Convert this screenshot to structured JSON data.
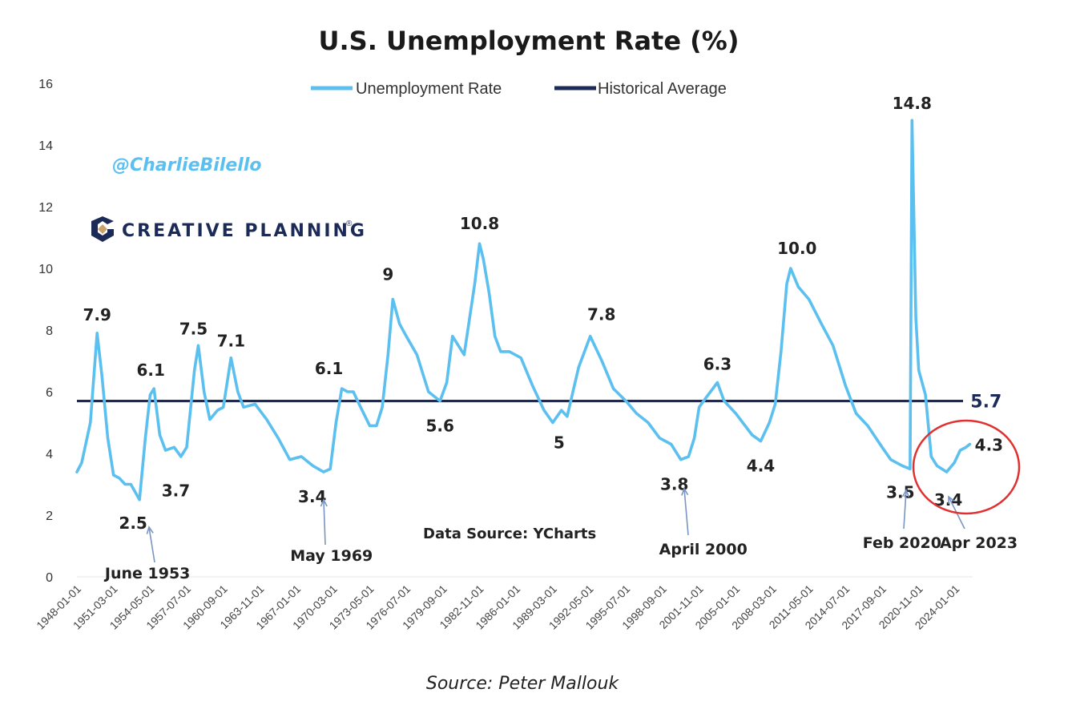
{
  "chart_data": {
    "type": "line",
    "title": "U.S. Unemployment Rate (%)",
    "xlabel": "",
    "ylabel": "",
    "ylim": [
      0,
      16
    ],
    "y_ticks": [
      "0",
      "2",
      "4",
      "6",
      "8",
      "10",
      "12",
      "14",
      "16"
    ],
    "x_tick_labels": [
      "1948-01-01",
      "1951-03-01",
      "1954-05-01",
      "1957-07-01",
      "1960-09-01",
      "1963-11-01",
      "1967-01-01",
      "1970-03-01",
      "1973-05-01",
      "1976-07-01",
      "1979-09-01",
      "1982-11-01",
      "1986-01-01",
      "1989-03-01",
      "1992-05-01",
      "1995-07-01",
      "1998-09-01",
      "2001-11-01",
      "2005-01-01",
      "2008-03-01",
      "2011-05-01",
      "2014-07-01",
      "2017-09-01",
      "2020-11-01",
      "2024-01-01"
    ],
    "legend": {
      "position": "top"
    },
    "series": [
      {
        "name": "Unemployment Rate",
        "color": "#5bc0ef",
        "points": [
          [
            "1948-01",
            3.4
          ],
          [
            "1948-06",
            3.7
          ],
          [
            "1949-03",
            5.0
          ],
          [
            "1949-10",
            7.9
          ],
          [
            "1950-03",
            6.5
          ],
          [
            "1950-09",
            4.5
          ],
          [
            "1951-03",
            3.3
          ],
          [
            "1951-09",
            3.2
          ],
          [
            "1952-03",
            3.0
          ],
          [
            "1952-09",
            3.0
          ],
          [
            "1953-06",
            2.5
          ],
          [
            "1953-12",
            4.5
          ],
          [
            "1954-05",
            5.9
          ],
          [
            "1954-09",
            6.1
          ],
          [
            "1955-03",
            4.6
          ],
          [
            "1955-09",
            4.1
          ],
          [
            "1956-06",
            4.2
          ],
          [
            "1957-01",
            3.9
          ],
          [
            "1957-07",
            4.2
          ],
          [
            "1958-03",
            6.7
          ],
          [
            "1958-07",
            7.5
          ],
          [
            "1959-01",
            6.0
          ],
          [
            "1959-07",
            5.1
          ],
          [
            "1960-03",
            5.4
          ],
          [
            "1960-09",
            5.5
          ],
          [
            "1961-05",
            7.1
          ],
          [
            "1961-12",
            6.0
          ],
          [
            "1962-06",
            5.5
          ],
          [
            "1963-06",
            5.6
          ],
          [
            "1964-06",
            5.1
          ],
          [
            "1965-06",
            4.5
          ],
          [
            "1966-06",
            3.8
          ],
          [
            "1967-06",
            3.9
          ],
          [
            "1968-06",
            3.6
          ],
          [
            "1969-05",
            3.4
          ],
          [
            "1969-12",
            3.5
          ],
          [
            "1970-06",
            5.0
          ],
          [
            "1970-12",
            6.1
          ],
          [
            "1971-06",
            6.0
          ],
          [
            "1971-12",
            6.0
          ],
          [
            "1972-06",
            5.6
          ],
          [
            "1973-05",
            4.9
          ],
          [
            "1973-12",
            4.9
          ],
          [
            "1974-06",
            5.5
          ],
          [
            "1974-12",
            7.2
          ],
          [
            "1975-05",
            9.0
          ],
          [
            "1975-12",
            8.2
          ],
          [
            "1976-07",
            7.8
          ],
          [
            "1977-06",
            7.2
          ],
          [
            "1978-06",
            6.0
          ],
          [
            "1979-06",
            5.7
          ],
          [
            "1980-01",
            6.3
          ],
          [
            "1980-07",
            7.8
          ],
          [
            "1981-01",
            7.5
          ],
          [
            "1981-07",
            7.2
          ],
          [
            "1982-06",
            9.5
          ],
          [
            "1982-11",
            10.8
          ],
          [
            "1983-03",
            10.3
          ],
          [
            "1983-09",
            9.2
          ],
          [
            "1984-03",
            7.8
          ],
          [
            "1984-09",
            7.3
          ],
          [
            "1985-06",
            7.3
          ],
          [
            "1986-06",
            7.1
          ],
          [
            "1987-06",
            6.2
          ],
          [
            "1988-06",
            5.4
          ],
          [
            "1989-03",
            5.0
          ],
          [
            "1989-12",
            5.4
          ],
          [
            "1990-06",
            5.2
          ],
          [
            "1991-06",
            6.8
          ],
          [
            "1992-06",
            7.8
          ],
          [
            "1993-06",
            7.0
          ],
          [
            "1994-06",
            6.1
          ],
          [
            "1995-07",
            5.7
          ],
          [
            "1996-06",
            5.3
          ],
          [
            "1997-06",
            5.0
          ],
          [
            "1998-06",
            4.5
          ],
          [
            "1999-06",
            4.3
          ],
          [
            "2000-04",
            3.8
          ],
          [
            "2000-12",
            3.9
          ],
          [
            "2001-06",
            4.5
          ],
          [
            "2001-11",
            5.5
          ],
          [
            "2002-06",
            5.8
          ],
          [
            "2003-06",
            6.3
          ],
          [
            "2004-01",
            5.7
          ],
          [
            "2005-01",
            5.3
          ],
          [
            "2006-06",
            4.6
          ],
          [
            "2007-03",
            4.4
          ],
          [
            "2007-12",
            5.0
          ],
          [
            "2008-06",
            5.6
          ],
          [
            "2008-12",
            7.3
          ],
          [
            "2009-06",
            9.5
          ],
          [
            "2009-10",
            10.0
          ],
          [
            "2010-06",
            9.4
          ],
          [
            "2011-05",
            9.0
          ],
          [
            "2012-06",
            8.2
          ],
          [
            "2013-06",
            7.5
          ],
          [
            "2014-07",
            6.2
          ],
          [
            "2015-06",
            5.3
          ],
          [
            "2016-06",
            4.9
          ],
          [
            "2017-09",
            4.2
          ],
          [
            "2018-06",
            3.8
          ],
          [
            "2019-06",
            3.6
          ],
          [
            "2020-02",
            3.5
          ],
          [
            "2020-04",
            14.8
          ],
          [
            "2020-08",
            8.4
          ],
          [
            "2020-11",
            6.7
          ],
          [
            "2021-06",
            5.9
          ],
          [
            "2021-12",
            3.9
          ],
          [
            "2022-06",
            3.6
          ],
          [
            "2023-04",
            3.4
          ],
          [
            "2023-12",
            3.7
          ],
          [
            "2024-06",
            4.1
          ],
          [
            "2024-12",
            4.2
          ],
          [
            "2025-04",
            4.3
          ]
        ]
      },
      {
        "name": "Historical Average",
        "color": "#1b2a57",
        "value": 5.7
      }
    ],
    "annotations": [
      {
        "label": "7.9",
        "x": "1949-10",
        "y": 7.9
      },
      {
        "label": "6.1",
        "x": "1954-09",
        "y": 6.1
      },
      {
        "label": "7.5",
        "x": "1958-07",
        "y": 7.5
      },
      {
        "label": "7.1",
        "x": "1961-05",
        "y": 7.1
      },
      {
        "label": "2.5",
        "x": "1953-06",
        "y": 2.5
      },
      {
        "label": "3.7",
        "x": "1957-04",
        "y": 3.7
      },
      {
        "label": "6.1",
        "x": "1970-12",
        "y": 6.1
      },
      {
        "label": "3.4",
        "x": "1969-05",
        "y": 3.4
      },
      {
        "label": "9",
        "x": "1975-05",
        "y": 9.0
      },
      {
        "label": "5.6",
        "x": "1979-06",
        "y": 5.6
      },
      {
        "label": "10.8",
        "x": "1982-11",
        "y": 10.8
      },
      {
        "label": "5",
        "x": "1989-03",
        "y": 5.0
      },
      {
        "label": "7.8",
        "x": "1992-06",
        "y": 7.8
      },
      {
        "label": "3.8",
        "x": "2000-04",
        "y": 3.8
      },
      {
        "label": "6.3",
        "x": "2003-06",
        "y": 6.3
      },
      {
        "label": "4.4",
        "x": "2007-03",
        "y": 4.4
      },
      {
        "label": "10.0",
        "x": "2009-10",
        "y": 10.0
      },
      {
        "label": "14.8",
        "x": "2020-04",
        "y": 14.8
      },
      {
        "label": "3.5",
        "x": "2020-02",
        "y": 3.5
      },
      {
        "label": "3.4",
        "x": "2023-04",
        "y": 3.4
      },
      {
        "label": "4.3",
        "x": "2025-04",
        "y": 4.3
      },
      {
        "label": "5.7",
        "x": "end",
        "y": 5.7
      }
    ],
    "date_callouts": [
      {
        "label": "June 1953",
        "x": "1953-06"
      },
      {
        "label": "May 1969",
        "x": "1969-05"
      },
      {
        "label": "April 2000",
        "x": "2000-04"
      },
      {
        "label": "Feb 2020",
        "x": "2020-02"
      },
      {
        "label": "Apr 2023",
        "x": "2023-04"
      }
    ]
  },
  "overlay": {
    "handle": "@CharlieBilello",
    "brand": "CREATIVE PLANNING",
    "brand_mark": "®",
    "data_source": "Data Source: YCharts",
    "source": "Source: Peter Mallouk",
    "highlight_color": "#e03030"
  }
}
